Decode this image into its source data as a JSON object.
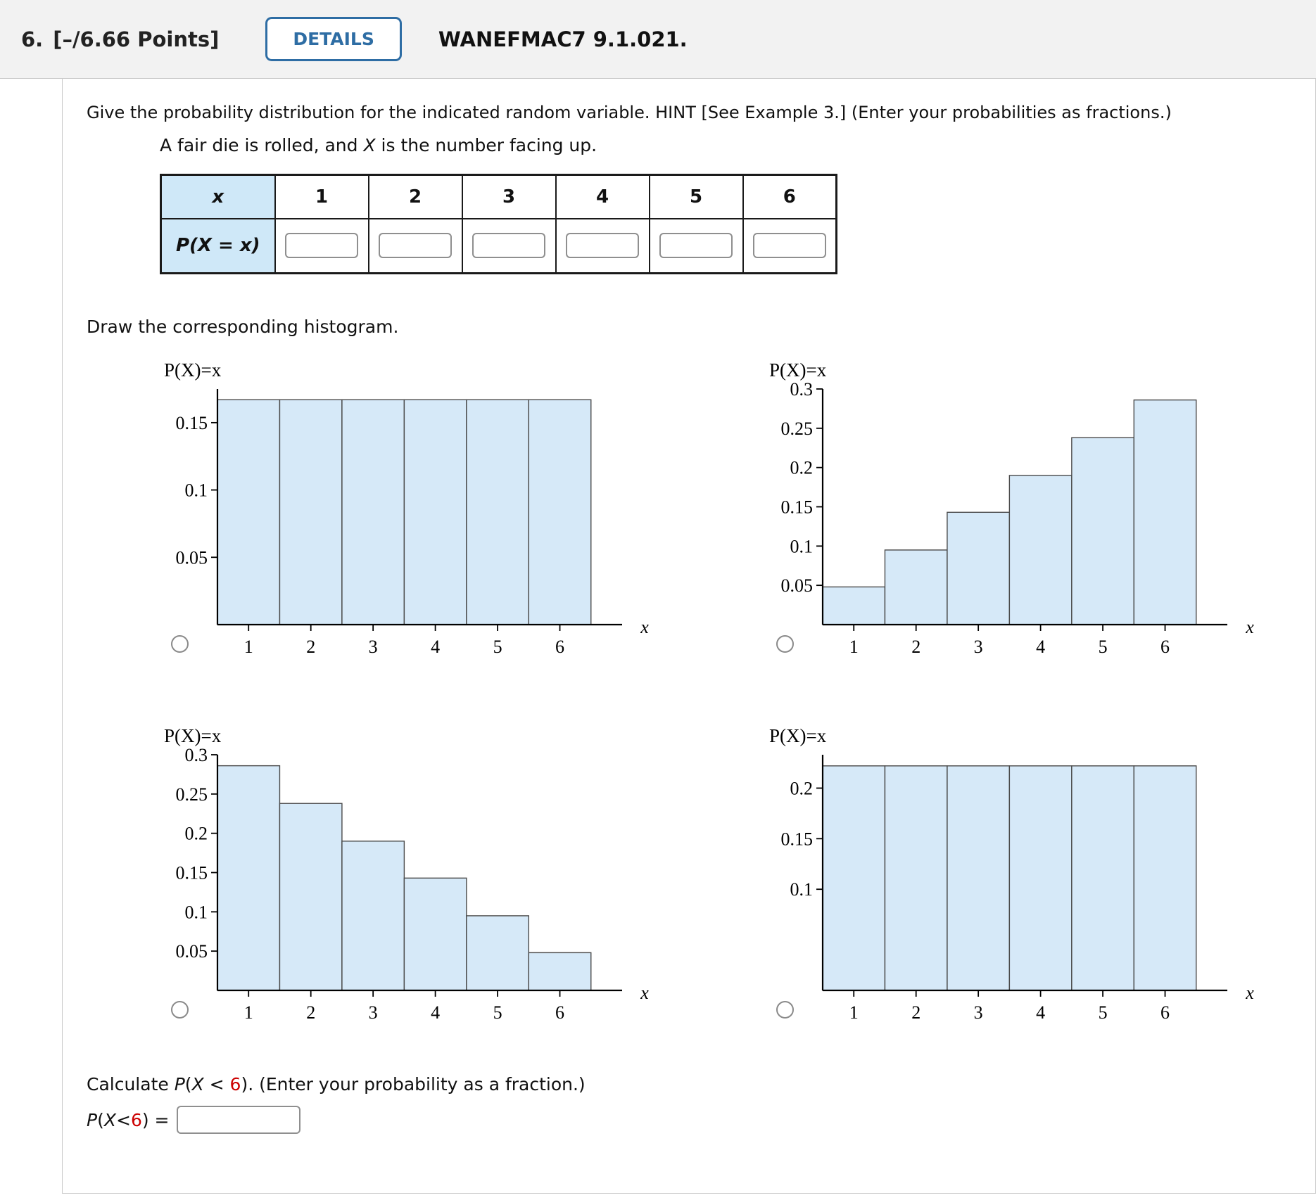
{
  "header": {
    "question_number": "6.",
    "points": "[–/6.66 Points]",
    "details_label": "DETAILS",
    "question_id": "WANEFMAC7 9.1.021."
  },
  "question": {
    "instruction": "Give the probability distribution for the indicated random variable. HINT [See Example 3.] (Enter your probabilities as fractions.)",
    "scenario_parts": [
      "A fair die is rolled, and ",
      "X",
      " is the number facing up."
    ]
  },
  "table": {
    "corner_label": "x",
    "row_label": "P(X = x)",
    "columns": [
      "1",
      "2",
      "3",
      "4",
      "5",
      "6"
    ],
    "input_values": [
      "",
      "",
      "",
      "",
      "",
      ""
    ]
  },
  "prompts": {
    "histogram": "Draw the corresponding histogram."
  },
  "chart_data": [
    {
      "type": "bar",
      "name": "uniform-one-sixth",
      "title": "P(X)=x",
      "xlabel": "x",
      "categories": [
        "1",
        "2",
        "3",
        "4",
        "5",
        "6"
      ],
      "values": [
        0.167,
        0.167,
        0.167,
        0.167,
        0.167,
        0.167
      ],
      "yticks": [
        "0.05",
        "0.1",
        "0.15"
      ],
      "ymax": 0.175,
      "selected": false
    },
    {
      "type": "bar",
      "name": "increasing-steps",
      "title": "P(X)=x",
      "xlabel": "x",
      "categories": [
        "1",
        "2",
        "3",
        "4",
        "5",
        "6"
      ],
      "values": [
        0.048,
        0.095,
        0.143,
        0.19,
        0.238,
        0.286
      ],
      "yticks": [
        "0.05",
        "0.1",
        "0.15",
        "0.2",
        "0.25",
        "0.3"
      ],
      "ymax": 0.3,
      "selected": false
    },
    {
      "type": "bar",
      "name": "decreasing-steps",
      "title": "P(X)=x",
      "xlabel": "x",
      "categories": [
        "1",
        "2",
        "3",
        "4",
        "5",
        "6"
      ],
      "values": [
        0.286,
        0.238,
        0.19,
        0.143,
        0.095,
        0.048
      ],
      "yticks": [
        "0.05",
        "0.1",
        "0.15",
        "0.2",
        "0.25",
        "0.3"
      ],
      "ymax": 0.3,
      "selected": false
    },
    {
      "type": "bar",
      "name": "uniform-point-two-two",
      "title": "P(X)=x",
      "xlabel": "x",
      "categories": [
        "1",
        "2",
        "3",
        "4",
        "5",
        "6"
      ],
      "values": [
        0.222,
        0.222,
        0.222,
        0.222,
        0.222,
        0.222
      ],
      "yticks": [
        "0.1",
        "0.15",
        "0.2"
      ],
      "ymax": 0.233,
      "selected": false
    }
  ],
  "calculate": {
    "prompt_parts": [
      "Calculate ",
      "P",
      "(",
      "X",
      " < ",
      "6",
      ").",
      " (Enter your probability as a fraction.)"
    ],
    "answer_parts": [
      "P",
      "(",
      "X",
      " < ",
      "6",
      ") = "
    ],
    "answer_value": ""
  },
  "colors": {
    "accent_blue": "#2e6da4",
    "bar_fill": "#d6e9f8",
    "bar_stroke": "#4a4a4a",
    "table_header_bg": "#cfe8f8",
    "randomized_red": "#cc0000",
    "header_bg": "#f2f2f2"
  }
}
